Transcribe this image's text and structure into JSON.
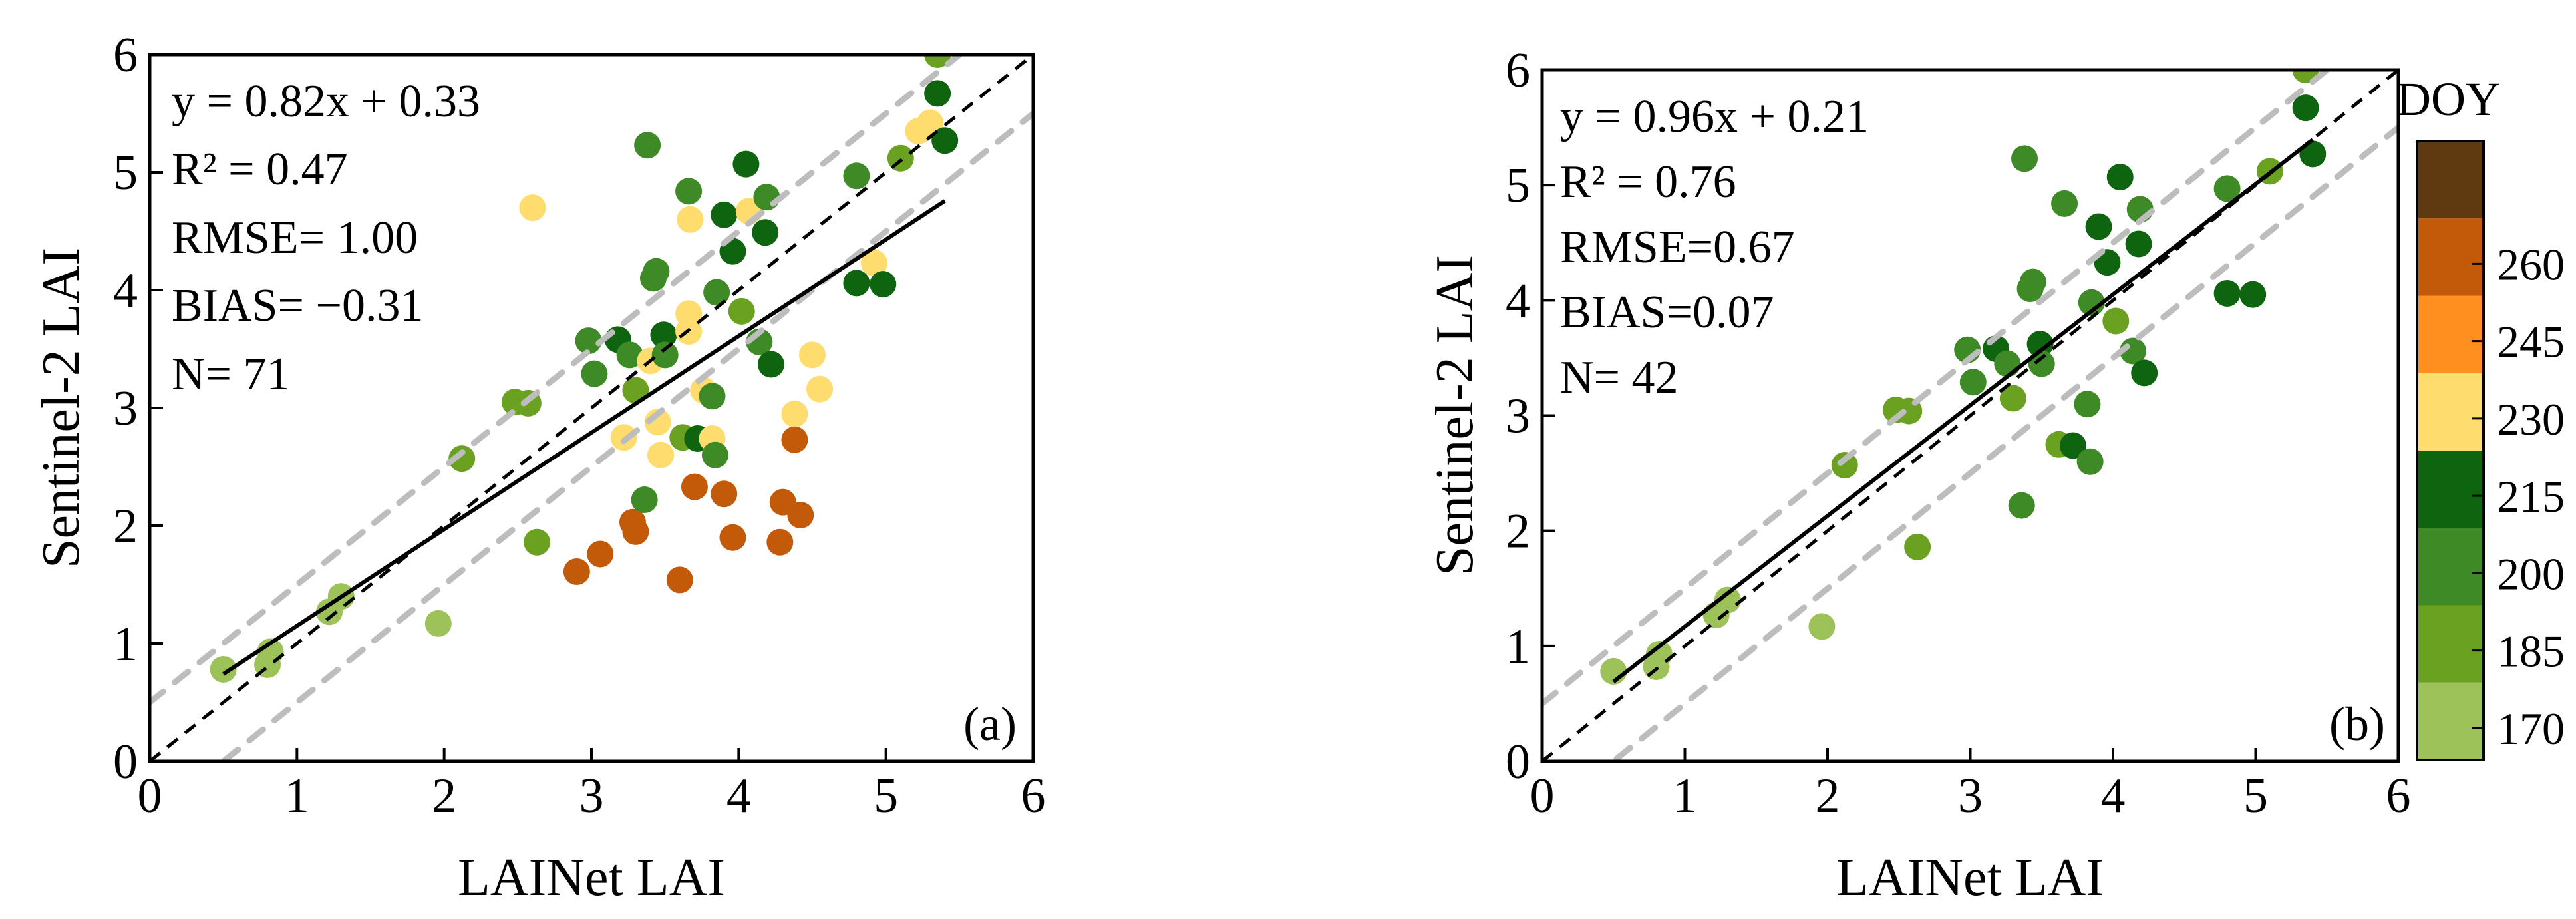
{
  "chart_data": [
    {
      "type": "scatter",
      "panel_label": "(a)",
      "xlabel": "LAINet LAI",
      "ylabel": "Sentinel-2 LAI",
      "xlim": [
        0,
        6
      ],
      "ylim": [
        0,
        6
      ],
      "x_ticks": [
        "0",
        "1",
        "2",
        "3",
        "4",
        "5",
        "6"
      ],
      "y_ticks": [
        "0",
        "1",
        "2",
        "3",
        "4",
        "5",
        "6"
      ],
      "stats": [
        "y = 0.82x + 0.33",
        "R² = 0.47",
        "RMSE= 1.00",
        "BIAS= −0.31",
        "N= 71"
      ],
      "fit": {
        "slope": 0.82,
        "intercept": 0.33,
        "x_range": [
          0.5,
          5.4
        ]
      },
      "one_to_one": true,
      "uncertainty_band": 0.5,
      "points": [
        {
          "x": 0.5,
          "y": 0.78,
          "doy": 170
        },
        {
          "x": 0.8,
          "y": 0.82,
          "doy": 170
        },
        {
          "x": 0.82,
          "y": 0.93,
          "doy": 170
        },
        {
          "x": 1.22,
          "y": 1.27,
          "doy": 170
        },
        {
          "x": 1.3,
          "y": 1.4,
          "doy": 170
        },
        {
          "x": 1.96,
          "y": 1.17,
          "doy": 170
        },
        {
          "x": 2.12,
          "y": 2.57,
          "doy": 185
        },
        {
          "x": 2.48,
          "y": 3.05,
          "doy": 185
        },
        {
          "x": 2.57,
          "y": 3.04,
          "doy": 185
        },
        {
          "x": 2.63,
          "y": 1.86,
          "doy": 185
        },
        {
          "x": 2.6,
          "y": 4.7,
          "doy": 220
        },
        {
          "x": 2.9,
          "y": 1.61,
          "doy": 255
        },
        {
          "x": 2.98,
          "y": 3.57,
          "doy": 200
        },
        {
          "x": 3.02,
          "y": 3.29,
          "doy": 200
        },
        {
          "x": 3.06,
          "y": 1.76,
          "doy": 255
        },
        {
          "x": 3.18,
          "y": 3.58,
          "doy": 215
        },
        {
          "x": 3.22,
          "y": 2.75,
          "doy": 220
        },
        {
          "x": 3.26,
          "y": 3.45,
          "doy": 200
        },
        {
          "x": 3.28,
          "y": 2.03,
          "doy": 255
        },
        {
          "x": 3.3,
          "y": 1.95,
          "doy": 255
        },
        {
          "x": 3.3,
          "y": 3.15,
          "doy": 185
        },
        {
          "x": 3.36,
          "y": 2.22,
          "doy": 200
        },
        {
          "x": 3.38,
          "y": 5.23,
          "doy": 200
        },
        {
          "x": 3.4,
          "y": 3.4,
          "doy": 220
        },
        {
          "x": 3.42,
          "y": 4.1,
          "doy": 200
        },
        {
          "x": 3.44,
          "y": 4.16,
          "doy": 200
        },
        {
          "x": 3.45,
          "y": 2.88,
          "doy": 220
        },
        {
          "x": 3.47,
          "y": 2.6,
          "doy": 220
        },
        {
          "x": 3.49,
          "y": 3.62,
          "doy": 215
        },
        {
          "x": 3.5,
          "y": 3.45,
          "doy": 200
        },
        {
          "x": 3.6,
          "y": 1.54,
          "doy": 255
        },
        {
          "x": 3.62,
          "y": 2.75,
          "doy": 185
        },
        {
          "x": 3.66,
          "y": 3.65,
          "doy": 220
        },
        {
          "x": 3.66,
          "y": 3.8,
          "doy": 220
        },
        {
          "x": 3.66,
          "y": 4.84,
          "doy": 200
        },
        {
          "x": 3.67,
          "y": 4.6,
          "doy": 220
        },
        {
          "x": 3.7,
          "y": 2.33,
          "doy": 255
        },
        {
          "x": 3.72,
          "y": 2.74,
          "doy": 215
        },
        {
          "x": 3.76,
          "y": 3.15,
          "doy": 220
        },
        {
          "x": 3.82,
          "y": 3.1,
          "doy": 200
        },
        {
          "x": 3.82,
          "y": 2.74,
          "doy": 220
        },
        {
          "x": 3.84,
          "y": 2.6,
          "doy": 200
        },
        {
          "x": 3.85,
          "y": 3.98,
          "doy": 200
        },
        {
          "x": 3.9,
          "y": 4.64,
          "doy": 215
        },
        {
          "x": 3.9,
          "y": 2.27,
          "doy": 255
        },
        {
          "x": 3.96,
          "y": 1.9,
          "doy": 255
        },
        {
          "x": 3.96,
          "y": 4.33,
          "doy": 215
        },
        {
          "x": 4.02,
          "y": 3.82,
          "doy": 185
        },
        {
          "x": 4.05,
          "y": 5.07,
          "doy": 215
        },
        {
          "x": 4.07,
          "y": 4.67,
          "doy": 220
        },
        {
          "x": 4.14,
          "y": 3.56,
          "doy": 200
        },
        {
          "x": 4.18,
          "y": 4.49,
          "doy": 215
        },
        {
          "x": 4.19,
          "y": 4.79,
          "doy": 200
        },
        {
          "x": 4.22,
          "y": 3.37,
          "doy": 215
        },
        {
          "x": 4.28,
          "y": 1.86,
          "doy": 255
        },
        {
          "x": 4.3,
          "y": 2.2,
          "doy": 255
        },
        {
          "x": 4.38,
          "y": 2.95,
          "doy": 220
        },
        {
          "x": 4.38,
          "y": 2.73,
          "doy": 255
        },
        {
          "x": 4.42,
          "y": 2.09,
          "doy": 255
        },
        {
          "x": 4.5,
          "y": 3.45,
          "doy": 220
        },
        {
          "x": 4.55,
          "y": 3.16,
          "doy": 220
        },
        {
          "x": 4.8,
          "y": 4.06,
          "doy": 215
        },
        {
          "x": 4.8,
          "y": 4.97,
          "doy": 200
        },
        {
          "x": 4.92,
          "y": 4.23,
          "doy": 220
        },
        {
          "x": 4.98,
          "y": 4.05,
          "doy": 215
        },
        {
          "x": 5.1,
          "y": 5.12,
          "doy": 185
        },
        {
          "x": 5.22,
          "y": 5.35,
          "doy": 220
        },
        {
          "x": 5.3,
          "y": 5.42,
          "doy": 220
        },
        {
          "x": 5.35,
          "y": 5.67,
          "doy": 215
        },
        {
          "x": 5.4,
          "y": 5.27,
          "doy": 215
        },
        {
          "x": 5.35,
          "y": 6.0,
          "doy": 185
        }
      ]
    },
    {
      "type": "scatter",
      "panel_label": "(b)",
      "xlabel": "LAINet LAI",
      "ylabel": "Sentinel-2 LAI",
      "xlim": [
        0,
        6
      ],
      "ylim": [
        0,
        6
      ],
      "x_ticks": [
        "0",
        "1",
        "2",
        "3",
        "4",
        "5",
        "6"
      ],
      "y_ticks": [
        "0",
        "1",
        "2",
        "3",
        "4",
        "5",
        "6"
      ],
      "stats": [
        "y = 0.96x + 0.21",
        "R² = 0.76",
        "RMSE=0.67",
        "BIAS=0.07",
        "N= 42"
      ],
      "fit": {
        "slope": 0.96,
        "intercept": 0.21,
        "x_range": [
          0.5,
          5.4
        ]
      },
      "one_to_one": true,
      "uncertainty_band": 0.5,
      "points": [
        {
          "x": 0.5,
          "y": 0.78,
          "doy": 170
        },
        {
          "x": 0.8,
          "y": 0.82,
          "doy": 170
        },
        {
          "x": 0.82,
          "y": 0.93,
          "doy": 170
        },
        {
          "x": 1.22,
          "y": 1.27,
          "doy": 170
        },
        {
          "x": 1.3,
          "y": 1.4,
          "doy": 170
        },
        {
          "x": 1.96,
          "y": 1.17,
          "doy": 170
        },
        {
          "x": 2.12,
          "y": 2.57,
          "doy": 185
        },
        {
          "x": 2.48,
          "y": 3.05,
          "doy": 185
        },
        {
          "x": 2.57,
          "y": 3.04,
          "doy": 185
        },
        {
          "x": 2.63,
          "y": 1.86,
          "doy": 185
        },
        {
          "x": 2.98,
          "y": 3.57,
          "doy": 200
        },
        {
          "x": 3.02,
          "y": 3.29,
          "doy": 200
        },
        {
          "x": 3.18,
          "y": 3.58,
          "doy": 215
        },
        {
          "x": 3.26,
          "y": 3.45,
          "doy": 200
        },
        {
          "x": 3.3,
          "y": 3.15,
          "doy": 185
        },
        {
          "x": 3.36,
          "y": 2.22,
          "doy": 200
        },
        {
          "x": 3.38,
          "y": 5.23,
          "doy": 200
        },
        {
          "x": 3.42,
          "y": 4.1,
          "doy": 200
        },
        {
          "x": 3.44,
          "y": 4.16,
          "doy": 200
        },
        {
          "x": 3.49,
          "y": 3.62,
          "doy": 215
        },
        {
          "x": 3.5,
          "y": 3.45,
          "doy": 200
        },
        {
          "x": 3.62,
          "y": 2.75,
          "doy": 185
        },
        {
          "x": 3.66,
          "y": 4.84,
          "doy": 200
        },
        {
          "x": 3.72,
          "y": 2.74,
          "doy": 215
        },
        {
          "x": 3.82,
          "y": 3.1,
          "doy": 200
        },
        {
          "x": 3.84,
          "y": 2.6,
          "doy": 200
        },
        {
          "x": 3.85,
          "y": 3.98,
          "doy": 200
        },
        {
          "x": 3.9,
          "y": 4.64,
          "doy": 215
        },
        {
          "x": 3.96,
          "y": 4.33,
          "doy": 215
        },
        {
          "x": 4.02,
          "y": 3.82,
          "doy": 185
        },
        {
          "x": 4.05,
          "y": 5.07,
          "doy": 215
        },
        {
          "x": 4.14,
          "y": 3.56,
          "doy": 200
        },
        {
          "x": 4.18,
          "y": 4.49,
          "doy": 215
        },
        {
          "x": 4.19,
          "y": 4.79,
          "doy": 200
        },
        {
          "x": 4.22,
          "y": 3.37,
          "doy": 215
        },
        {
          "x": 4.8,
          "y": 4.06,
          "doy": 215
        },
        {
          "x": 4.8,
          "y": 4.97,
          "doy": 200
        },
        {
          "x": 4.98,
          "y": 4.05,
          "doy": 215
        },
        {
          "x": 5.1,
          "y": 5.12,
          "doy": 185
        },
        {
          "x": 5.35,
          "y": 5.67,
          "doy": 215
        },
        {
          "x": 5.4,
          "y": 5.27,
          "doy": 215
        },
        {
          "x": 5.35,
          "y": 6.0,
          "doy": 185
        }
      ]
    }
  ],
  "colorbar": {
    "title": "DOY",
    "tick_labels": [
      "170",
      "185",
      "200",
      "215",
      "230",
      "245",
      "260"
    ],
    "bins": [
      {
        "doy": 170,
        "color": "#9dc25a"
      },
      {
        "doy": 185,
        "color": "#6aa121"
      },
      {
        "doy": 200,
        "color": "#3e8a26"
      },
      {
        "doy": 215,
        "color": "#0f6410"
      },
      {
        "doy": 220,
        "color": "#ffdc6e"
      },
      {
        "doy": 240,
        "color": "#ff8f1f"
      },
      {
        "doy": 255,
        "color": "#c35a0a"
      },
      {
        "doy": 270,
        "color": "#5f3a10"
      }
    ]
  },
  "colors": {
    "fit_line": "#000000",
    "one_to_one": "#000000",
    "uncertainty": "#bdbdbd"
  }
}
